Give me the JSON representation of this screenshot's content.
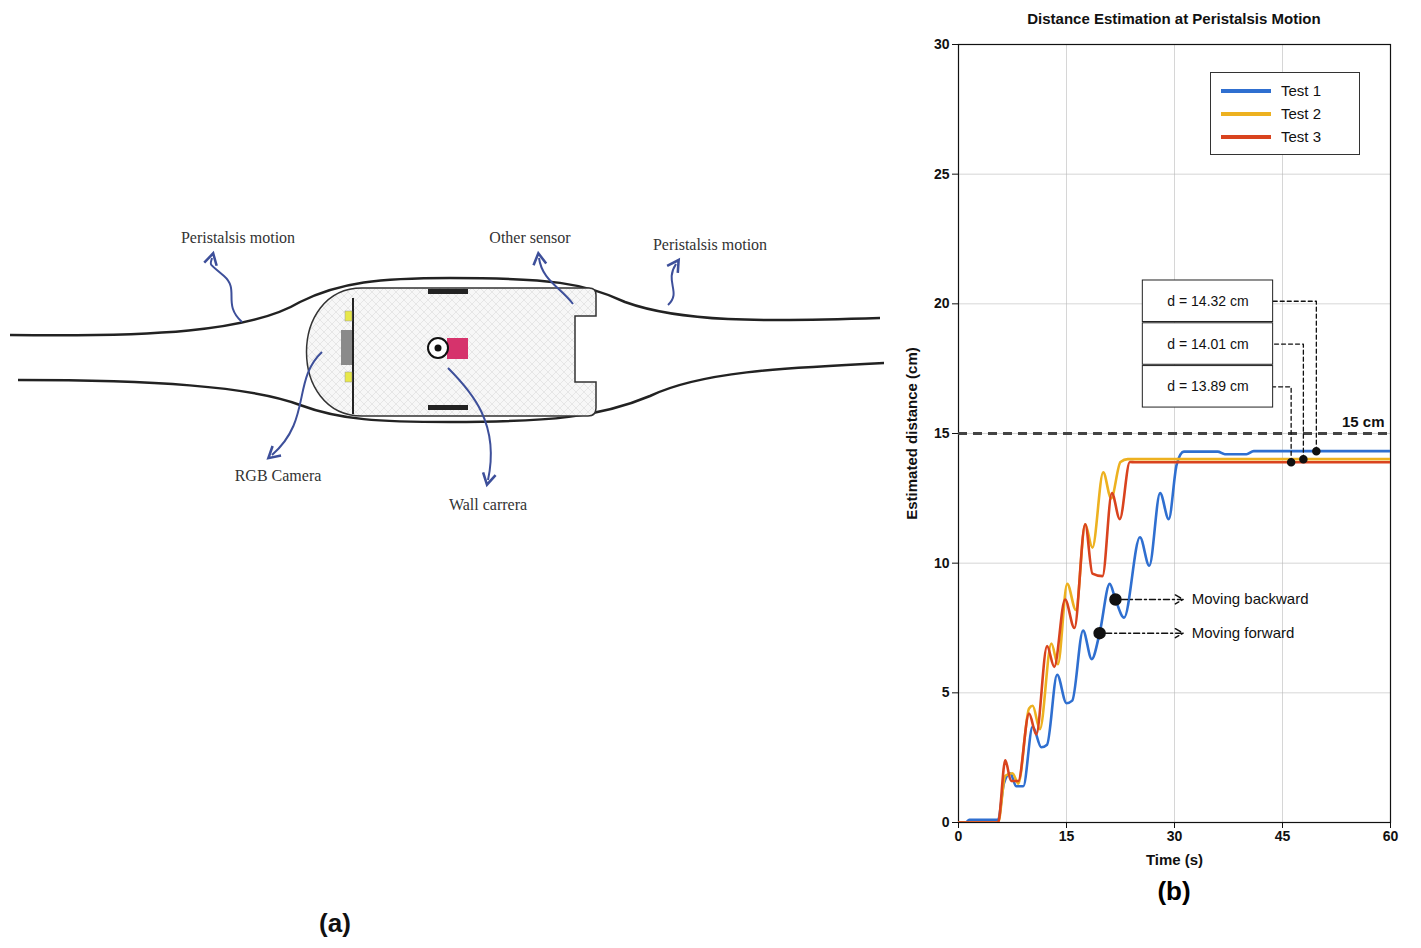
{
  "panels": [
    "(a)",
    "(b)"
  ],
  "diagram": {
    "peristalsis_left": "Peristalsis motion",
    "peristalsis_right": "Peristalsis motion",
    "other_sensor": "Other sensor",
    "rgb_camera": "RGB Camera",
    "wall_camera": "Wall carrera"
  },
  "chart_data": {
    "type": "line",
    "title": "Distance Estimation at Peristalsis Motion",
    "x_label": "Time (s)",
    "y_label": "Estimated distance (cm)",
    "xlim": [
      0,
      60
    ],
    "xticks": [
      0,
      15,
      30,
      45,
      60
    ],
    "ylim": [
      0,
      30
    ],
    "yticks": [
      0,
      5,
      10,
      15,
      20,
      25,
      30
    ],
    "grid": true,
    "legend": "upper right",
    "series": [
      {
        "name": "Test 1",
        "color": "#2f6fd0",
        "x": [
          0,
          1,
          1.5,
          5.5,
          6.3,
          7.2,
          8,
          9,
          10.3,
          11.5,
          12.3,
          13.7,
          15,
          15.8,
          17.3,
          18.5,
          19.6,
          21,
          21.8,
          23,
          25.2,
          26.5,
          28,
          29.2,
          30.3,
          31.3,
          36,
          37,
          40,
          41,
          60
        ],
        "values": [
          0,
          0,
          0.1,
          0.1,
          1.5,
          1.9,
          1.4,
          1.4,
          3.7,
          2.9,
          3.0,
          5.7,
          4.6,
          4.7,
          7.4,
          6.3,
          7.3,
          9.2,
          8.6,
          7.9,
          11.0,
          9.9,
          12.7,
          11.7,
          13.8,
          14.3,
          14.3,
          14.2,
          14.2,
          14.32,
          14.32
        ]
      },
      {
        "name": "Test 2",
        "color": "#edb120",
        "x": [
          0,
          5.5,
          6.5,
          7.5,
          8.3,
          9.8,
          10.3,
          11.3,
          12.9,
          13.8,
          15.1,
          16.3,
          17.6,
          18.6,
          20.1,
          21.2,
          22.5,
          23.5,
          60
        ],
        "values": [
          0,
          0,
          1.8,
          1.9,
          1.5,
          4.4,
          4.5,
          3.6,
          6.9,
          6.1,
          9.2,
          8.2,
          11.5,
          10.6,
          13.5,
          12.5,
          13.9,
          14.01,
          14.01
        ]
      },
      {
        "name": "Test 3",
        "color": "#d9431e",
        "x": [
          0,
          5.5,
          6.5,
          7.3,
          8.3,
          9.8,
          10.8,
          12.3,
          13.3,
          14.8,
          16.1,
          17.6,
          18.6,
          20,
          21.3,
          22.4,
          23.8,
          24.5,
          60
        ],
        "values": [
          0,
          0,
          2.4,
          1.6,
          1.6,
          4.2,
          3.4,
          6.8,
          6.0,
          8.6,
          7.5,
          11.5,
          9.6,
          9.5,
          12.7,
          11.7,
          13.9,
          13.89,
          13.89
        ]
      }
    ],
    "reference_lines": [
      {
        "y": 15,
        "label": "15 cm",
        "color": "#444444",
        "line_style": "dashed"
      }
    ],
    "callouts": [
      {
        "text": "d = 14.32 cm",
        "x": 49.7,
        "y": 14.32
      },
      {
        "text": "d = 14.01 cm",
        "x": 47.9,
        "y": 14.01
      },
      {
        "text": "d = 13.89 cm",
        "x": 46.2,
        "y": 13.89
      }
    ],
    "arrow_labels": [
      {
        "text": "Moving backward",
        "x": 21.8,
        "y": 8.6
      },
      {
        "text": "Moving forward",
        "x": 19.6,
        "y": 7.3
      }
    ]
  }
}
